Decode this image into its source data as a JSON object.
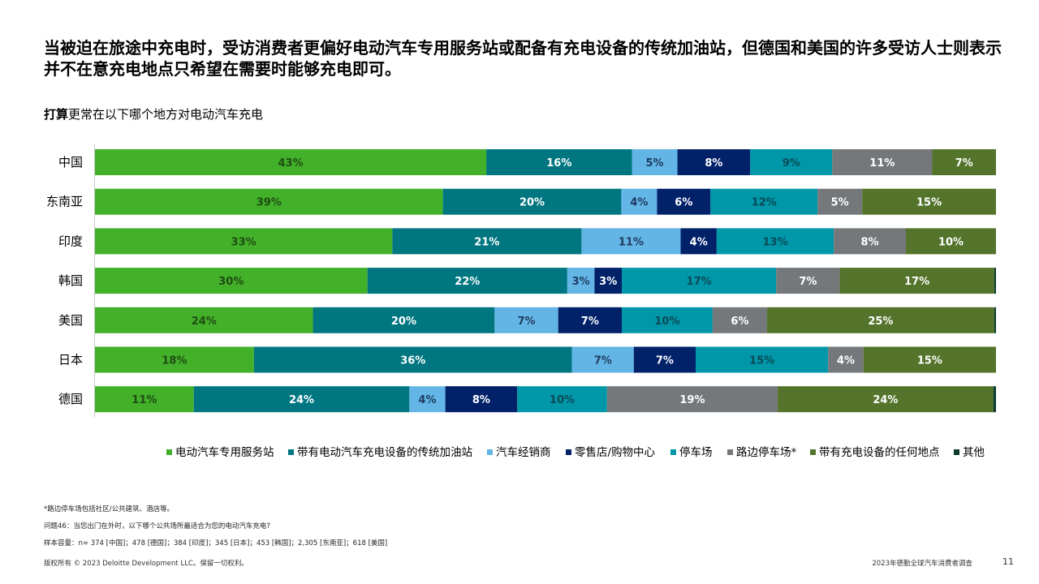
{
  "headline": {
    "lead": "当被迫在旅途中充电时",
    "rest": "，受访消费者更偏好电动汽车专用服务站或配备有充电设备的传统加油站，但德国和美国的许多受访人士则表示并不在意充电地点只希望在需要时能够充电即可。"
  },
  "subtitle": {
    "em": "打算",
    "rest": "更常在以下哪个地方对电动汽车充电"
  },
  "chart_data": {
    "type": "bar",
    "orientation": "horizontal",
    "stacked": true,
    "unit": "%",
    "categories": [
      "中国",
      "东南亚",
      "印度",
      "韩国",
      "美国",
      "日本",
      "德国"
    ],
    "series": [
      {
        "name": "电动汽车专用服务站",
        "color": "#43B02A",
        "label_color": "#1e4d12",
        "values": [
          43,
          39,
          33,
          30,
          24,
          18,
          11
        ]
      },
      {
        "name": "带有电动汽车充电设备的传统加油站",
        "color": "#007680",
        "label_color": "#ffffff",
        "values": [
          16,
          20,
          21,
          22,
          20,
          36,
          24
        ]
      },
      {
        "name": "汽车经销商",
        "color": "#62B5E5",
        "label_color": "#1f3a5f",
        "values": [
          5,
          4,
          11,
          3,
          7,
          7,
          4
        ]
      },
      {
        "name": "零售店/购物中心",
        "color": "#012169",
        "label_color": "#ffffff",
        "values": [
          8,
          6,
          4,
          3,
          7,
          7,
          8
        ]
      },
      {
        "name": "停车场",
        "color": "#0097A9",
        "label_color": "#0b4a55",
        "values": [
          9,
          12,
          13,
          17,
          10,
          15,
          10
        ]
      },
      {
        "name": "路边停车场*",
        "color": "#75787B",
        "label_color": "#ffffff",
        "values": [
          11,
          5,
          8,
          7,
          6,
          4,
          19
        ]
      },
      {
        "name": "带有充电设备的任何地点",
        "color": "#53742A",
        "label_color": "#ffffff",
        "values": [
          7,
          15,
          10,
          17,
          25,
          15,
          24
        ]
      },
      {
        "name": "其他",
        "color": "#0D3B2E",
        "label_color": "#ffffff",
        "values": [
          0,
          0,
          0,
          0.2,
          0.2,
          0,
          0.3
        ]
      }
    ],
    "value_labels": [
      [
        "43%",
        "16%",
        "5%",
        "8%",
        "9%",
        "11%",
        "7%",
        ""
      ],
      [
        "39%",
        "20%",
        "4%",
        "6%",
        "12%",
        "5%",
        "15%",
        ""
      ],
      [
        "33%",
        "21%",
        "11%",
        "4%",
        "13%",
        "8%",
        "10%",
        ""
      ],
      [
        "30%",
        "22%",
        "3%",
        "3%",
        "17%",
        "7%",
        "17%",
        ""
      ],
      [
        "24%",
        "20%",
        "7%",
        "7%",
        "10%",
        "6%",
        "25%",
        ""
      ],
      [
        "18%",
        "36%",
        "7%",
        "7%",
        "15%",
        "4%",
        "15%",
        ""
      ],
      [
        "11%",
        "24%",
        "4%",
        "8%",
        "10%",
        "19%",
        "24%",
        ""
      ]
    ]
  },
  "notes": {
    "line1": "*路边停车场包括社区/公共建筑、酒店等。",
    "line2": "问题46：当您出门在外时，以下哪个公共场所最适合为您的电动汽车充电?",
    "line3": "样本容量：n= 374 [中国]；478 [德国]；384 [印度]；345 [日本]；453 [韩国]；2,305 [东南亚]；618 [美国]"
  },
  "footer": {
    "left": "版权所有 © 2023 Deloitte Development LLC。保留一切权利。",
    "right": "2023年德勤全球汽车消费者调查",
    "page": "11"
  }
}
